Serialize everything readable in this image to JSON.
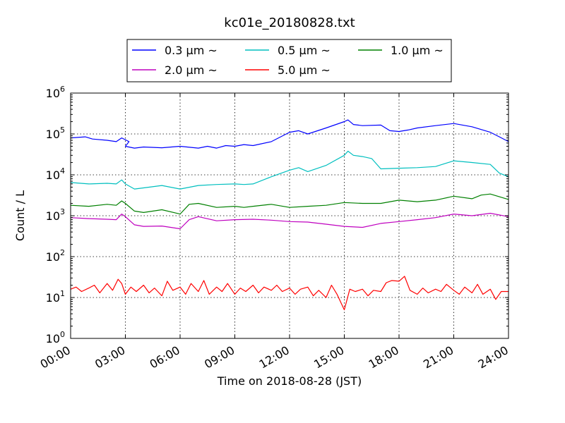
{
  "chart_data": {
    "type": "line",
    "title": "kc01e_20180828.txt",
    "xlabel": "Time on 2018-08-28 (JST)",
    "ylabel": "Count / L",
    "yscale": "log",
    "ylim_exp": [
      0,
      6
    ],
    "y_ticks": [
      {
        "base": "10",
        "exp": "0",
        "v": 0
      },
      {
        "base": "10",
        "exp": "1",
        "v": 1
      },
      {
        "base": "10",
        "exp": "2",
        "v": 2
      },
      {
        "base": "10",
        "exp": "3",
        "v": 3
      },
      {
        "base": "10",
        "exp": "4",
        "v": 4
      },
      {
        "base": "10",
        "exp": "5",
        "v": 5
      },
      {
        "base": "10",
        "exp": "6",
        "v": 6
      }
    ],
    "xlim_hours": [
      0,
      24
    ],
    "x_ticks": [
      {
        "label": "00:00",
        "h": 0
      },
      {
        "label": "03:00",
        "h": 3
      },
      {
        "label": "06:00",
        "h": 6
      },
      {
        "label": "09:00",
        "h": 9
      },
      {
        "label": "12:00",
        "h": 12
      },
      {
        "label": "15:00",
        "h": 15
      },
      {
        "label": "18:00",
        "h": 18
      },
      {
        "label": "21:00",
        "h": 21
      },
      {
        "label": "24:00",
        "h": 24
      }
    ],
    "grid": true,
    "legend_position": "top-center",
    "series": [
      {
        "name": "0.3 μm ~",
        "color": "#0000ff",
        "points": [
          [
            0,
            80000
          ],
          [
            0.8,
            85000
          ],
          [
            1.2,
            75000
          ],
          [
            2,
            70000
          ],
          [
            2.5,
            65000
          ],
          [
            2.8,
            80000
          ],
          [
            3.2,
            65000
          ],
          [
            3,
            50000
          ],
          [
            3.5,
            45000
          ],
          [
            4,
            48000
          ],
          [
            5,
            46000
          ],
          [
            6,
            50000
          ],
          [
            7,
            45000
          ],
          [
            7.5,
            50000
          ],
          [
            8,
            45000
          ],
          [
            8.5,
            52000
          ],
          [
            9,
            50000
          ],
          [
            9.5,
            55000
          ],
          [
            10,
            52000
          ],
          [
            11,
            65000
          ],
          [
            12,
            110000
          ],
          [
            12.5,
            120000
          ],
          [
            13,
            100000
          ],
          [
            14,
            140000
          ],
          [
            15,
            200000
          ],
          [
            15.2,
            220000
          ],
          [
            15.5,
            170000
          ],
          [
            16,
            160000
          ],
          [
            17,
            165000
          ],
          [
            17.5,
            120000
          ],
          [
            18,
            115000
          ],
          [
            18.5,
            125000
          ],
          [
            19,
            140000
          ],
          [
            20,
            160000
          ],
          [
            21,
            180000
          ],
          [
            22,
            150000
          ],
          [
            23,
            110000
          ],
          [
            23.5,
            85000
          ],
          [
            24,
            65000
          ]
        ]
      },
      {
        "name": "0.5 μm ~",
        "color": "#00bfbf",
        "points": [
          [
            0,
            6500
          ],
          [
            1,
            6000
          ],
          [
            2,
            6200
          ],
          [
            2.5,
            6000
          ],
          [
            2.8,
            7500
          ],
          [
            3,
            6000
          ],
          [
            3.5,
            4500
          ],
          [
            4,
            4800
          ],
          [
            5,
            5500
          ],
          [
            6,
            4500
          ],
          [
            7,
            5500
          ],
          [
            8,
            5800
          ],
          [
            9,
            6000
          ],
          [
            9.5,
            5800
          ],
          [
            10,
            6000
          ],
          [
            11,
            9000
          ],
          [
            12,
            13000
          ],
          [
            12.5,
            15000
          ],
          [
            13,
            12000
          ],
          [
            14,
            17000
          ],
          [
            15,
            30000
          ],
          [
            15.2,
            38000
          ],
          [
            15.5,
            30000
          ],
          [
            16,
            28000
          ],
          [
            16.5,
            25000
          ],
          [
            17,
            14000
          ],
          [
            18,
            14500
          ],
          [
            19,
            15000
          ],
          [
            20,
            16000
          ],
          [
            21,
            22000
          ],
          [
            22,
            20000
          ],
          [
            23,
            18000
          ],
          [
            23.5,
            11000
          ],
          [
            24,
            9000
          ]
        ]
      },
      {
        "name": "1.0 μm ~",
        "color": "#008000",
        "points": [
          [
            0,
            1800
          ],
          [
            1,
            1700
          ],
          [
            2,
            1900
          ],
          [
            2.5,
            1800
          ],
          [
            2.8,
            2300
          ],
          [
            3,
            2000
          ],
          [
            3.5,
            1300
          ],
          [
            4,
            1200
          ],
          [
            5,
            1400
          ],
          [
            6,
            1100
          ],
          [
            6.5,
            1900
          ],
          [
            7,
            2000
          ],
          [
            8,
            1600
          ],
          [
            9,
            1700
          ],
          [
            9.5,
            1600
          ],
          [
            10,
            1700
          ],
          [
            11,
            1900
          ],
          [
            12,
            1600
          ],
          [
            13,
            1700
          ],
          [
            14,
            1800
          ],
          [
            15,
            2100
          ],
          [
            16,
            2000
          ],
          [
            17,
            2000
          ],
          [
            18,
            2400
          ],
          [
            19,
            2200
          ],
          [
            20,
            2400
          ],
          [
            21,
            3000
          ],
          [
            22,
            2600
          ],
          [
            22.5,
            3200
          ],
          [
            23,
            3400
          ],
          [
            24,
            2500
          ]
        ]
      },
      {
        "name": "2.0 μm ~",
        "color": "#bf00bf",
        "points": [
          [
            0,
            900
          ],
          [
            1,
            850
          ],
          [
            2,
            820
          ],
          [
            2.5,
            800
          ],
          [
            2.8,
            1100
          ],
          [
            3,
            950
          ],
          [
            3.5,
            600
          ],
          [
            4,
            550
          ],
          [
            5,
            560
          ],
          [
            6,
            480
          ],
          [
            6.5,
            800
          ],
          [
            7,
            950
          ],
          [
            8,
            750
          ],
          [
            9,
            800
          ],
          [
            10,
            820
          ],
          [
            11,
            780
          ],
          [
            12,
            720
          ],
          [
            13,
            700
          ],
          [
            14,
            620
          ],
          [
            15,
            550
          ],
          [
            16,
            520
          ],
          [
            17,
            650
          ],
          [
            18,
            720
          ],
          [
            19,
            800
          ],
          [
            20,
            900
          ],
          [
            21,
            1100
          ],
          [
            22,
            1000
          ],
          [
            23,
            1150
          ],
          [
            24,
            950
          ]
        ]
      },
      {
        "name": "5.0 μm ~",
        "color": "#ff0000",
        "points": [
          [
            0,
            16
          ],
          [
            0.3,
            18
          ],
          [
            0.6,
            14
          ],
          [
            1,
            17
          ],
          [
            1.3,
            20
          ],
          [
            1.6,
            13
          ],
          [
            2,
            22
          ],
          [
            2.3,
            15
          ],
          [
            2.6,
            28
          ],
          [
            2.8,
            22
          ],
          [
            3,
            12
          ],
          [
            3.3,
            18
          ],
          [
            3.6,
            14
          ],
          [
            4,
            20
          ],
          [
            4.3,
            13
          ],
          [
            4.6,
            17
          ],
          [
            5,
            11
          ],
          [
            5.3,
            25
          ],
          [
            5.6,
            15
          ],
          [
            6,
            18
          ],
          [
            6.3,
            12
          ],
          [
            6.6,
            22
          ],
          [
            7,
            14
          ],
          [
            7.3,
            26
          ],
          [
            7.6,
            12
          ],
          [
            8,
            18
          ],
          [
            8.3,
            14
          ],
          [
            8.6,
            22
          ],
          [
            9,
            12
          ],
          [
            9.3,
            17
          ],
          [
            9.6,
            14
          ],
          [
            10,
            20
          ],
          [
            10.3,
            13
          ],
          [
            10.6,
            18
          ],
          [
            11,
            15
          ],
          [
            11.3,
            20
          ],
          [
            11.6,
            14
          ],
          [
            12,
            17
          ],
          [
            12.3,
            12
          ],
          [
            12.6,
            16
          ],
          [
            13,
            18
          ],
          [
            13.3,
            11
          ],
          [
            13.6,
            15
          ],
          [
            14,
            10
          ],
          [
            14.3,
            20
          ],
          [
            14.6,
            12
          ],
          [
            15,
            5
          ],
          [
            15.3,
            16
          ],
          [
            15.6,
            14
          ],
          [
            16,
            16
          ],
          [
            16.3,
            11
          ],
          [
            16.6,
            15
          ],
          [
            17,
            14
          ],
          [
            17.3,
            23
          ],
          [
            17.6,
            26
          ],
          [
            18,
            25
          ],
          [
            18.3,
            33
          ],
          [
            18.6,
            15
          ],
          [
            19,
            12
          ],
          [
            19.3,
            17
          ],
          [
            19.6,
            13
          ],
          [
            20,
            16
          ],
          [
            20.3,
            14
          ],
          [
            20.6,
            21
          ],
          [
            21,
            15
          ],
          [
            21.3,
            12
          ],
          [
            21.6,
            18
          ],
          [
            22,
            13
          ],
          [
            22.3,
            21
          ],
          [
            22.6,
            12
          ],
          [
            23,
            16
          ],
          [
            23.3,
            9
          ],
          [
            23.6,
            14
          ],
          [
            24,
            14
          ]
        ]
      }
    ]
  }
}
